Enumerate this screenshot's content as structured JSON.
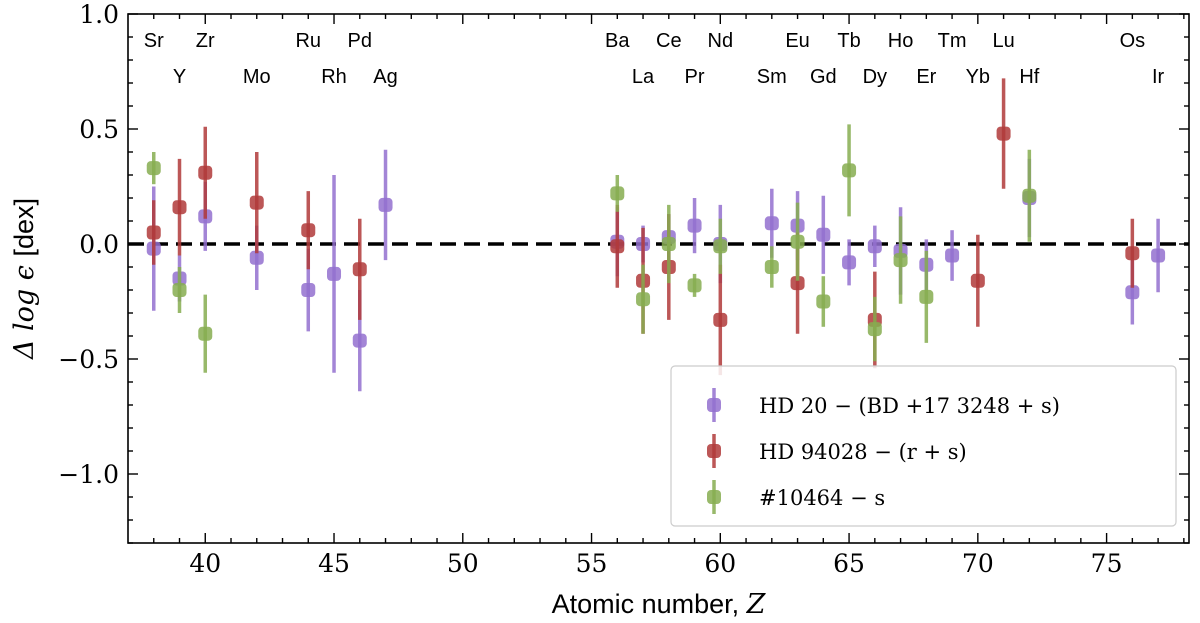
{
  "chart_data": {
    "type": "scatter",
    "title": "",
    "xlabel": "Atomic number, ",
    "xlabel_symbol": "Z",
    "ylabel_symbol": "Δ log ϵ",
    "ylabel": "[dex]",
    "xlim": [
      37,
      78.2
    ],
    "ylim": [
      -1.3,
      1.0
    ],
    "x_ticks": [
      40,
      45,
      50,
      55,
      60,
      65,
      70,
      75
    ],
    "x_tick_labels": [
      "40",
      "45",
      "50",
      "55",
      "60",
      "65",
      "70",
      "75"
    ],
    "y_ticks": [
      1.0,
      0.5,
      0.0,
      -0.5,
      -1.0
    ],
    "y_tick_labels": [
      "1.0",
      "0.5",
      "0.0",
      "−0.5",
      "−1.0"
    ],
    "reference_line": 0.0,
    "legend_position": "lower-right",
    "element_labels": [
      {
        "z": 38,
        "symbol": "Sr",
        "row": 1
      },
      {
        "z": 39,
        "symbol": "Y",
        "row": 2
      },
      {
        "z": 40,
        "symbol": "Zr",
        "row": 1
      },
      {
        "z": 42,
        "symbol": "Mo",
        "row": 2
      },
      {
        "z": 44,
        "symbol": "Ru",
        "row": 1
      },
      {
        "z": 45,
        "symbol": "Rh",
        "row": 2
      },
      {
        "z": 46,
        "symbol": "Pd",
        "row": 1
      },
      {
        "z": 47,
        "symbol": "Ag",
        "row": 2
      },
      {
        "z": 56,
        "symbol": "Ba",
        "row": 1
      },
      {
        "z": 57,
        "symbol": "La",
        "row": 2
      },
      {
        "z": 58,
        "symbol": "Ce",
        "row": 1
      },
      {
        "z": 59,
        "symbol": "Pr",
        "row": 2
      },
      {
        "z": 60,
        "symbol": "Nd",
        "row": 1
      },
      {
        "z": 62,
        "symbol": "Sm",
        "row": 2
      },
      {
        "z": 63,
        "symbol": "Eu",
        "row": 1
      },
      {
        "z": 64,
        "symbol": "Gd",
        "row": 2
      },
      {
        "z": 65,
        "symbol": "Tb",
        "row": 1
      },
      {
        "z": 66,
        "symbol": "Dy",
        "row": 2
      },
      {
        "z": 67,
        "symbol": "Ho",
        "row": 1
      },
      {
        "z": 68,
        "symbol": "Er",
        "row": 2
      },
      {
        "z": 69,
        "symbol": "Tm",
        "row": 1
      },
      {
        "z": 70,
        "symbol": "Yb",
        "row": 2
      },
      {
        "z": 71,
        "symbol": "Lu",
        "row": 1
      },
      {
        "z": 72,
        "symbol": "Hf",
        "row": 2
      },
      {
        "z": 76,
        "symbol": "Os",
        "row": 1
      },
      {
        "z": 77,
        "symbol": "Ir",
        "row": 2
      }
    ],
    "series": [
      {
        "name": "HD 20 − (BD +17 3248 + s)",
        "color": "#9370cf",
        "points": [
          {
            "x": 38,
            "y": -0.02,
            "err": 0.27
          },
          {
            "x": 39,
            "y": -0.15,
            "err": 0.1
          },
          {
            "x": 40,
            "y": 0.12,
            "err": 0.15
          },
          {
            "x": 42,
            "y": -0.06,
            "err": 0.14
          },
          {
            "x": 44,
            "y": -0.2,
            "err": 0.18
          },
          {
            "x": 45,
            "y": -0.13,
            "err": 0.43
          },
          {
            "x": 46,
            "y": -0.42,
            "err": 0.22
          },
          {
            "x": 47,
            "y": 0.17,
            "err": 0.24
          },
          {
            "x": 56,
            "y": 0.01,
            "err": 0.15
          },
          {
            "x": 57,
            "y": 0.0,
            "err": 0.08
          },
          {
            "x": 58,
            "y": 0.03,
            "err": 0.1
          },
          {
            "x": 59,
            "y": 0.08,
            "err": 0.12
          },
          {
            "x": 60,
            "y": 0.0,
            "err": 0.17
          },
          {
            "x": 62,
            "y": 0.09,
            "err": 0.15
          },
          {
            "x": 63,
            "y": 0.08,
            "err": 0.15
          },
          {
            "x": 64,
            "y": 0.04,
            "err": 0.17
          },
          {
            "x": 65,
            "y": -0.08,
            "err": 0.1
          },
          {
            "x": 66,
            "y": -0.01,
            "err": 0.09
          },
          {
            "x": 67,
            "y": -0.03,
            "err": 0.19
          },
          {
            "x": 68,
            "y": -0.09,
            "err": 0.11
          },
          {
            "x": 69,
            "y": -0.05,
            "err": 0.11
          },
          {
            "x": 72,
            "y": 0.2,
            "err": 0.17
          },
          {
            "x": 76,
            "y": -0.21,
            "err": 0.14
          },
          {
            "x": 77,
            "y": -0.05,
            "err": 0.16
          }
        ]
      },
      {
        "name": "HD 94028 − (r + s)",
        "color": "#b03a3a",
        "points": [
          {
            "x": 38,
            "y": 0.05,
            "err": 0.14
          },
          {
            "x": 39,
            "y": 0.16,
            "err": 0.21
          },
          {
            "x": 40,
            "y": 0.31,
            "err": 0.2
          },
          {
            "x": 42,
            "y": 0.18,
            "err": 0.22
          },
          {
            "x": 44,
            "y": 0.06,
            "err": 0.17
          },
          {
            "x": 46,
            "y": -0.11,
            "err": 0.22
          },
          {
            "x": 56,
            "y": -0.01,
            "err": 0.18
          },
          {
            "x": 57,
            "y": -0.16,
            "err": 0.23
          },
          {
            "x": 58,
            "y": -0.1,
            "err": 0.23
          },
          {
            "x": 60,
            "y": -0.33,
            "err": 0.24
          },
          {
            "x": 63,
            "y": -0.17,
            "err": 0.22
          },
          {
            "x": 66,
            "y": -0.33,
            "err": 0.21
          },
          {
            "x": 70,
            "y": -0.16,
            "err": 0.2
          },
          {
            "x": 71,
            "y": 0.48,
            "err": 0.24
          },
          {
            "x": 76,
            "y": -0.04,
            "err": 0.15
          }
        ]
      },
      {
        "name": "#10464 − s",
        "color": "#86ad50",
        "points": [
          {
            "x": 38,
            "y": 0.33,
            "err": 0.07
          },
          {
            "x": 39,
            "y": -0.2,
            "err": 0.1
          },
          {
            "x": 40,
            "y": -0.39,
            "err": 0.17
          },
          {
            "x": 56,
            "y": 0.22,
            "err": 0.08
          },
          {
            "x": 57,
            "y": -0.24,
            "err": 0.15
          },
          {
            "x": 58,
            "y": 0.0,
            "err": 0.17
          },
          {
            "x": 59,
            "y": -0.18,
            "err": 0.05
          },
          {
            "x": 60,
            "y": -0.01,
            "err": 0.12
          },
          {
            "x": 62,
            "y": -0.1,
            "err": 0.09
          },
          {
            "x": 63,
            "y": 0.01,
            "err": 0.17
          },
          {
            "x": 64,
            "y": -0.25,
            "err": 0.11
          },
          {
            "x": 65,
            "y": 0.32,
            "err": 0.2
          },
          {
            "x": 66,
            "y": -0.37,
            "err": 0.14
          },
          {
            "x": 67,
            "y": -0.07,
            "err": 0.19
          },
          {
            "x": 68,
            "y": -0.23,
            "err": 0.2
          },
          {
            "x": 72,
            "y": 0.21,
            "err": 0.2
          }
        ]
      }
    ]
  }
}
